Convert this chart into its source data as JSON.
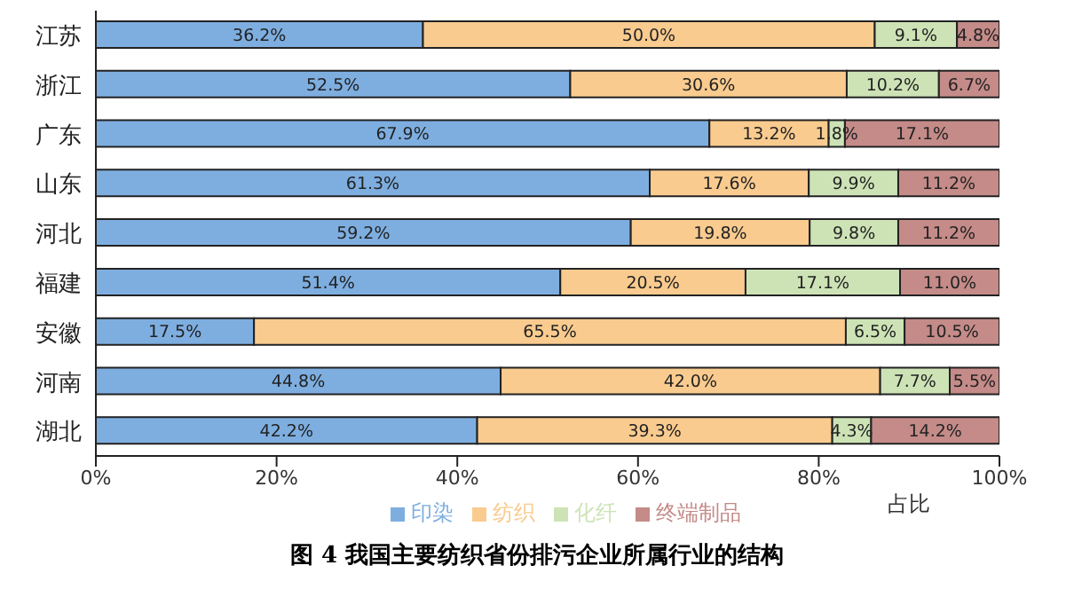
{
  "chart_data": {
    "type": "bar",
    "orientation": "horizontal",
    "stacked": true,
    "title": "图 4 我国主要纺织省份排污企业所属行业的结构",
    "xlabel": "占比",
    "categories": [
      "江苏",
      "浙江",
      "广东",
      "山东",
      "河北",
      "福建",
      "安徽",
      "河南",
      "湖北"
    ],
    "series": [
      {
        "name": "印染",
        "color": "#7eaee0",
        "values": [
          36.2,
          52.5,
          67.9,
          61.3,
          59.2,
          51.4,
          17.5,
          44.8,
          42.2
        ],
        "value_labels": [
          "36.2%",
          "52.5%",
          "67.9%",
          "61.3%",
          "59.2%",
          "51.4%",
          "17.5%",
          "44.8%",
          "42.2%"
        ]
      },
      {
        "name": "纺织",
        "color": "#f9cb8f",
        "values": [
          50.0,
          30.6,
          13.2,
          17.6,
          19.8,
          20.5,
          65.5,
          42.0,
          39.3
        ],
        "value_labels": [
          "50.0%",
          "30.6%",
          "13.2%",
          "17.6%",
          "19.8%",
          "20.5%",
          "65.5%",
          "42.0%",
          "39.3%"
        ]
      },
      {
        "name": "化纤",
        "color": "#cde3b6",
        "values": [
          9.1,
          10.2,
          1.8,
          9.9,
          9.8,
          17.1,
          6.5,
          7.7,
          4.3
        ],
        "value_labels": [
          "9.1%",
          "10.2%",
          "1.8%",
          "9.9%",
          "9.8%",
          "17.1%",
          "6.5%",
          "7.7%",
          "4.3%"
        ]
      },
      {
        "name": "终端制品",
        "color": "#c48b88",
        "values": [
          4.8,
          6.7,
          17.1,
          11.2,
          11.2,
          11.0,
          10.5,
          5.5,
          14.2
        ],
        "value_labels": [
          "4.8%",
          "6.7%",
          "17.1%",
          "11.2%",
          "11.2%",
          "11.0%",
          "10.5%",
          "5.5%",
          "14.2%"
        ]
      }
    ],
    "xlim": [
      0,
      100
    ],
    "xticks": [
      {
        "value": 0,
        "label": "0%"
      },
      {
        "value": 20,
        "label": "20%"
      },
      {
        "value": 40,
        "label": "40%"
      },
      {
        "value": 60,
        "label": "60%"
      },
      {
        "value": 80,
        "label": "80%"
      },
      {
        "value": 100,
        "label": "100%"
      }
    ],
    "legend": "bottom"
  }
}
